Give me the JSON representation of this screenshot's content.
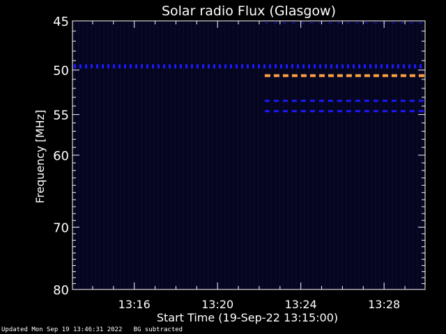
{
  "chart_data": {
    "type": "heatmap",
    "title": "Solar radio Flux (Glasgow)",
    "xlabel": "Start Time (19-Sep-22 13:15:00)",
    "ylabel": "Frequency [MHz]",
    "x_range_minutes": [
      13.03,
      29.97
    ],
    "x_ticks": [
      {
        "minute": 16,
        "label": "13:16"
      },
      {
        "minute": 20,
        "label": "13:20"
      },
      {
        "minute": 24,
        "label": "13:24"
      },
      {
        "minute": 28,
        "label": "13:28"
      }
    ],
    "y_range_mhz": [
      45,
      80
    ],
    "y_ticks": [
      {
        "value": 45,
        "label": "45"
      },
      {
        "value": 50,
        "label": "50"
      },
      {
        "value": 55,
        "label": "55"
      },
      {
        "value": 60,
        "label": "60"
      },
      {
        "value": 70,
        "label": "70"
      },
      {
        "value": 80,
        "label": "80"
      }
    ],
    "emission_bands": [
      {
        "freq_mhz": 49.6,
        "start_minute": 13.03,
        "end_minute": 29.97,
        "intensity": "low",
        "color": "#1a1aff"
      },
      {
        "freq_mhz": 50.6,
        "start_minute": 22.2,
        "end_minute": 29.97,
        "intensity": "high",
        "color": "#ffa040"
      },
      {
        "freq_mhz": 53.4,
        "start_minute": 22.2,
        "end_minute": 29.97,
        "intensity": "low",
        "color": "#1a1aff"
      },
      {
        "freq_mhz": 54.6,
        "start_minute": 22.2,
        "end_minute": 29.97,
        "intensity": "low",
        "color": "#1a1aff"
      },
      {
        "freq_mhz": 45.2,
        "start_minute": 22.2,
        "end_minute": 29.97,
        "intensity": "very-low",
        "color": "#10107a"
      }
    ],
    "colors": {
      "background": "#000000",
      "plot_background": "#05051e",
      "axes": "#ffffff"
    }
  },
  "footer": {
    "updated": "Updated Mon Sep 19 13:46:31 2022",
    "note": "BG subtracted"
  }
}
